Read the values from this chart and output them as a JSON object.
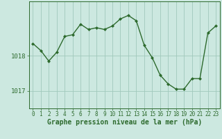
{
  "x": [
    0,
    1,
    2,
    3,
    4,
    5,
    6,
    7,
    8,
    9,
    10,
    11,
    12,
    13,
    14,
    15,
    16,
    17,
    18,
    19,
    20,
    21,
    22,
    23
  ],
  "y": [
    1018.35,
    1018.15,
    1017.85,
    1018.1,
    1018.55,
    1018.6,
    1018.9,
    1018.75,
    1018.8,
    1018.75,
    1018.85,
    1019.05,
    1019.15,
    1019.0,
    1018.3,
    1017.95,
    1017.45,
    1017.2,
    1017.05,
    1017.05,
    1017.35,
    1017.35,
    1018.65,
    1018.85
  ],
  "line_color": "#2d6a2d",
  "marker": "D",
  "markersize": 2.5,
  "linewidth": 1.0,
  "bg_color": "#cce8e0",
  "grid_color": "#a0c8bc",
  "xlabel": "Graphe pression niveau de la mer (hPa)",
  "xlabel_fontsize": 7,
  "yticks": [
    1017,
    1018
  ],
  "ylim": [
    1016.5,
    1019.55
  ],
  "xlim": [
    -0.5,
    23.5
  ],
  "xtick_fontsize": 5.5,
  "ytick_fontsize": 6.5,
  "fig_bg_color": "#cce8e0"
}
